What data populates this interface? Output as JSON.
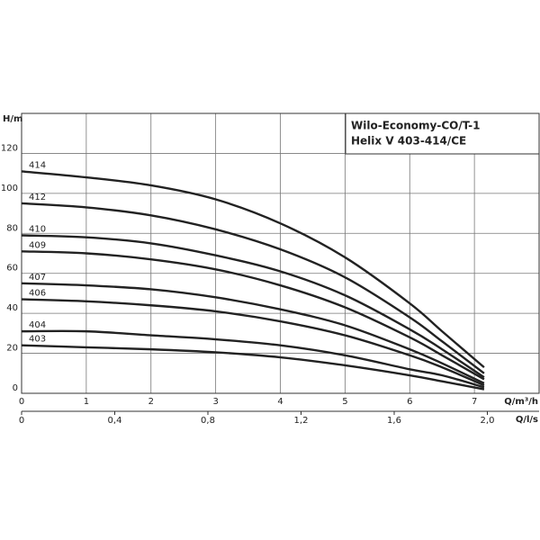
{
  "chart_data": {
    "type": "line",
    "title": "Wilo-Economy-CO/T-1",
    "subtitle": "Helix V 403-414/CE",
    "y_label": "H/m",
    "x_label": "Q/m³/h",
    "x2_label": "Q/l/s",
    "x": [
      0,
      1,
      2,
      3,
      4,
      5,
      6,
      6.5,
      7.15
    ],
    "series": [
      {
        "name": "414",
        "color": "#222222",
        "values": [
          111,
          108,
          104,
          97,
          85,
          68,
          45,
          31,
          13
        ]
      },
      {
        "name": "412",
        "color": "#222222",
        "values": [
          95,
          93,
          89,
          82,
          72,
          58,
          38,
          26,
          10
        ]
      },
      {
        "name": "410",
        "color": "#222222",
        "values": [
          79,
          78,
          75,
          69,
          61,
          49,
          32,
          22,
          8
        ]
      },
      {
        "name": "409",
        "color": "#222222",
        "values": [
          71,
          70,
          67,
          62,
          54,
          43,
          28,
          19,
          7
        ]
      },
      {
        "name": "407",
        "color": "#222222",
        "values": [
          55,
          54,
          52,
          48,
          42,
          34,
          22,
          15,
          5
        ]
      },
      {
        "name": "406",
        "color": "#222222",
        "values": [
          47,
          46,
          44,
          41,
          36,
          29,
          19,
          13,
          4
        ]
      },
      {
        "name": "404",
        "color": "#222222",
        "values": [
          31,
          31,
          29,
          27,
          24,
          19,
          12,
          9,
          3
        ]
      },
      {
        "name": "403",
        "color": "#222222",
        "values": [
          24,
          23,
          22,
          20.5,
          18,
          14,
          9,
          6,
          2
        ]
      }
    ],
    "xlim": [
      0,
      8
    ],
    "xticks": [
      0,
      1,
      2,
      3,
      4,
      5,
      6,
      7
    ],
    "ylim": [
      0,
      140
    ],
    "yticks": [
      0,
      20,
      40,
      60,
      80,
      100,
      120
    ],
    "x2lim": [
      0,
      2.2222
    ],
    "x2ticks": [
      0,
      {
        "value": 0.4,
        "label": "0,4"
      },
      {
        "value": 0.8,
        "label": "0,8"
      },
      {
        "value": 1.2,
        "label": "1,2"
      },
      {
        "value": 1.6,
        "label": "1,6"
      },
      {
        "value": 2.0,
        "label": "2,0"
      }
    ],
    "grid": true
  }
}
